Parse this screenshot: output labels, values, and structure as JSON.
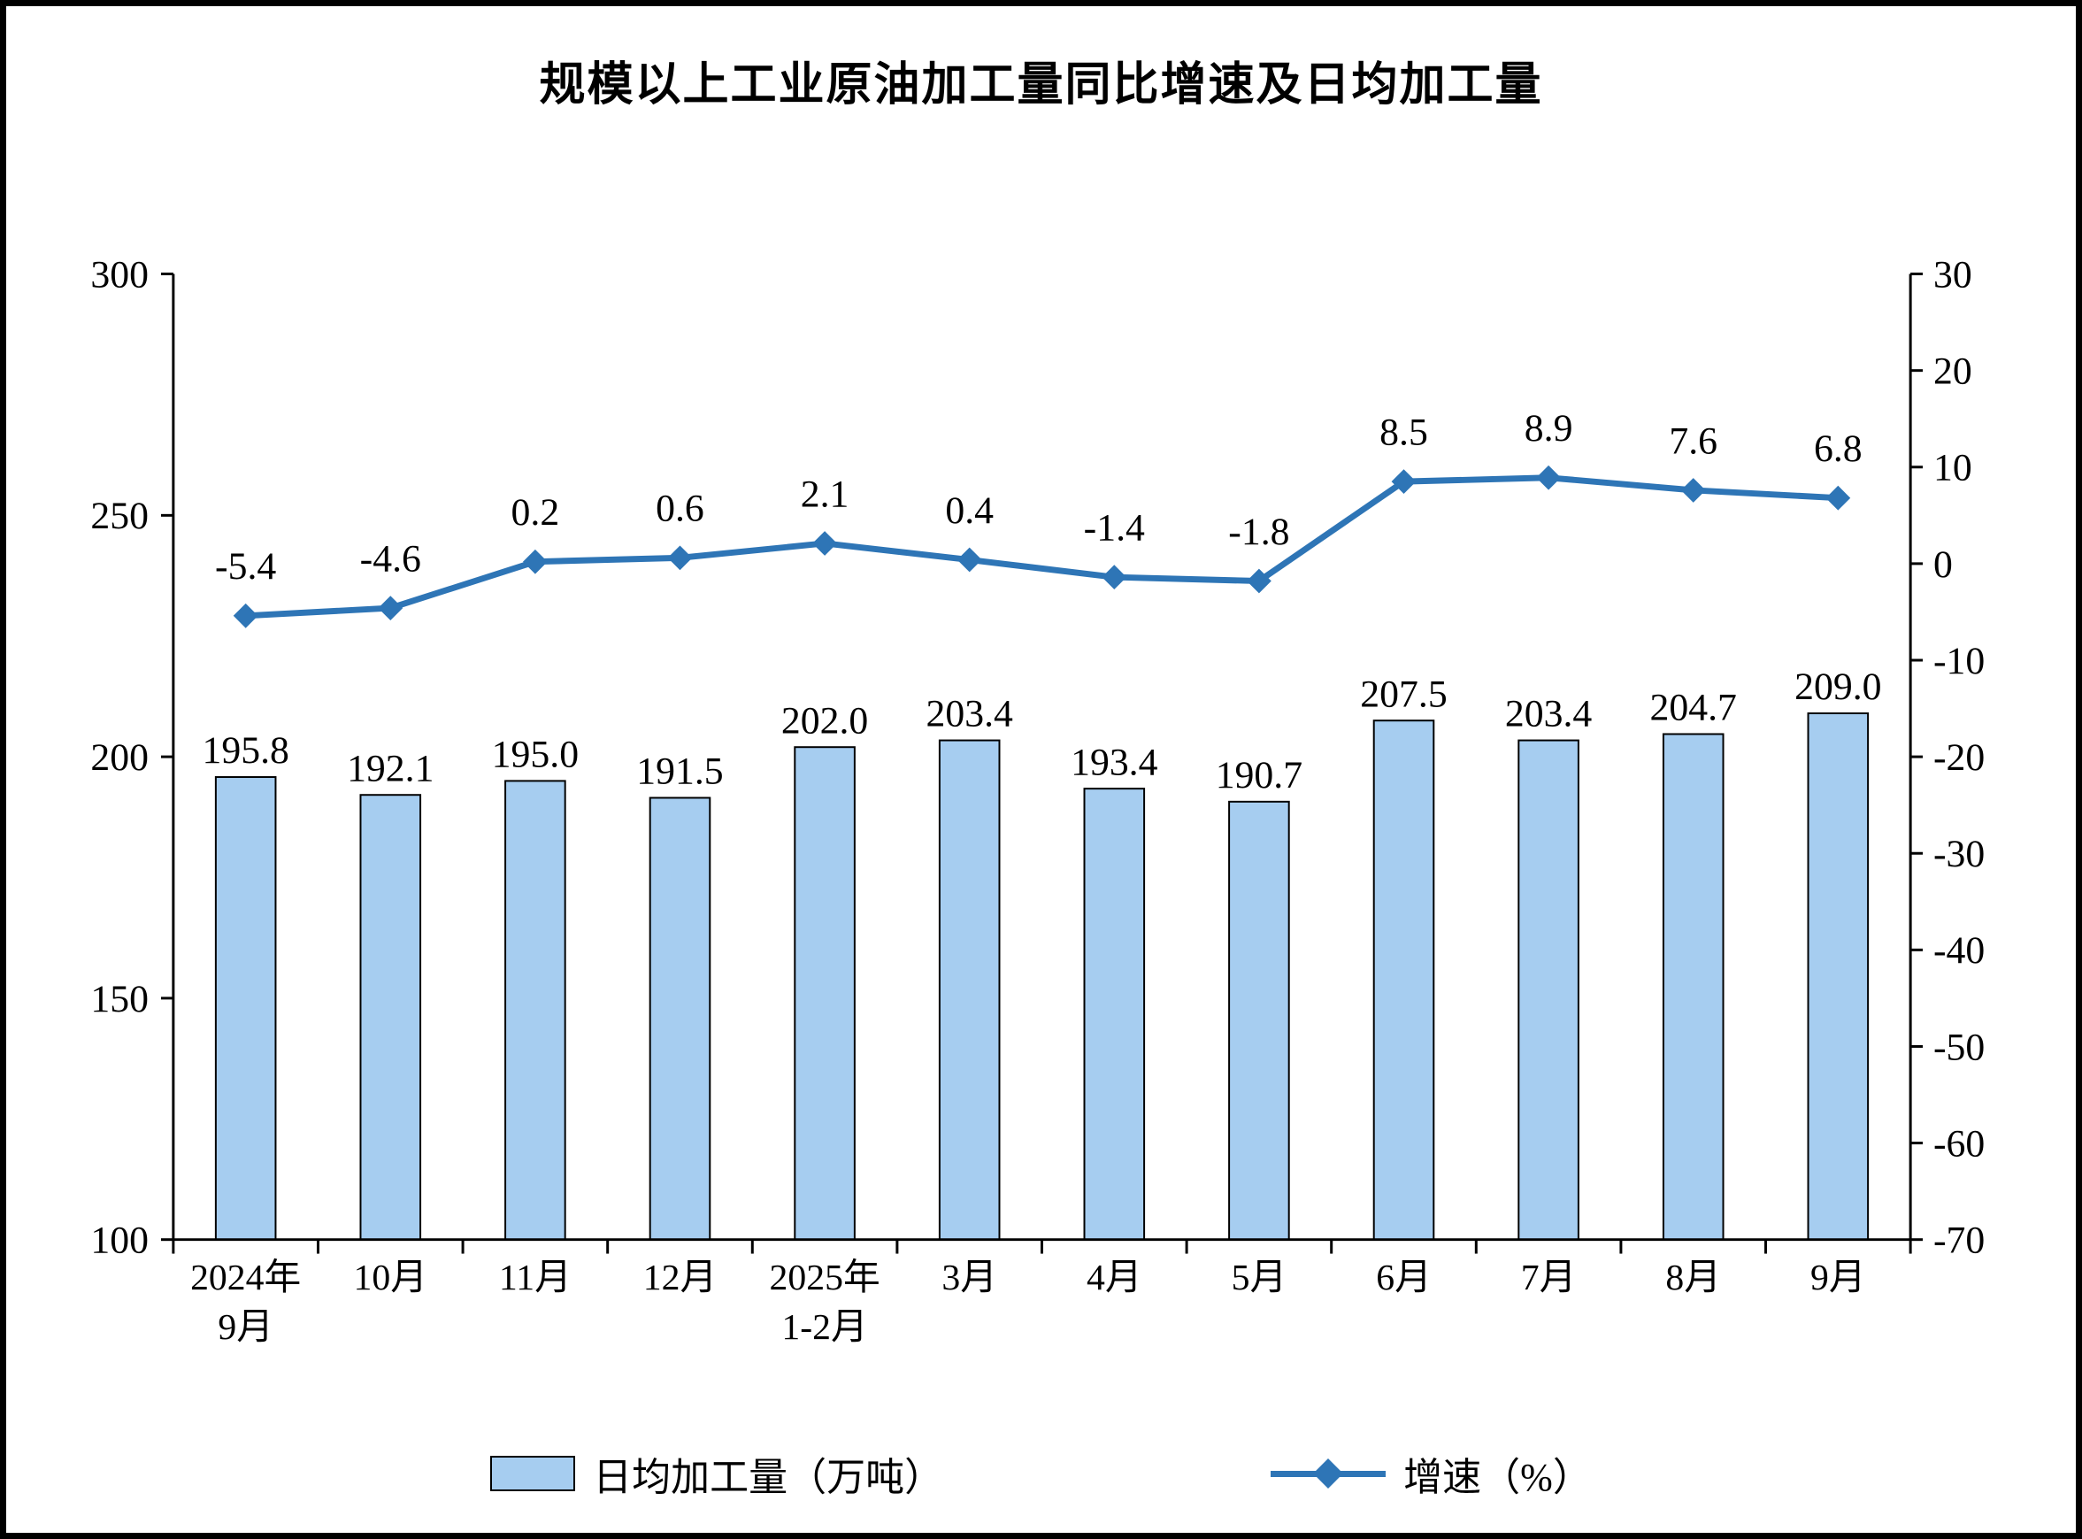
{
  "chart_data": {
    "type": "bar+line",
    "title": "规模以上工业原油加工量同比增速及日均加工量",
    "categories": [
      "2024年\n9月",
      "10月",
      "11月",
      "12月",
      "2025年\n1-2月",
      "3月",
      "4月",
      "5月",
      "6月",
      "7月",
      "8月",
      "9月"
    ],
    "series": [
      {
        "name": "日均加工量（万吨）",
        "type": "bar",
        "axis": "left",
        "color": "#A6CDF0",
        "border_color": "#000000",
        "values": [
          195.8,
          192.1,
          195.0,
          191.5,
          202.0,
          203.4,
          193.4,
          190.7,
          207.5,
          203.4,
          204.7,
          209.0
        ]
      },
      {
        "name": "增速（%）",
        "type": "line",
        "axis": "right",
        "color": "#2E75B6",
        "marker": "diamond",
        "values": [
          -5.4,
          -4.6,
          0.2,
          0.6,
          2.1,
          0.4,
          -1.4,
          -1.8,
          8.5,
          8.9,
          7.6,
          6.8
        ]
      }
    ],
    "left_axis": {
      "min": 100,
      "max": 300,
      "ticks": [
        100,
        150,
        200,
        250,
        300
      ]
    },
    "right_axis": {
      "min": -70,
      "max": 30,
      "ticks": [
        -70,
        -60,
        -50,
        -40,
        -30,
        -20,
        -10,
        0,
        10,
        20,
        30
      ]
    },
    "grid": false,
    "legend_position": "bottom",
    "background_color": "#FFFFFF",
    "text_color": "#000000"
  }
}
